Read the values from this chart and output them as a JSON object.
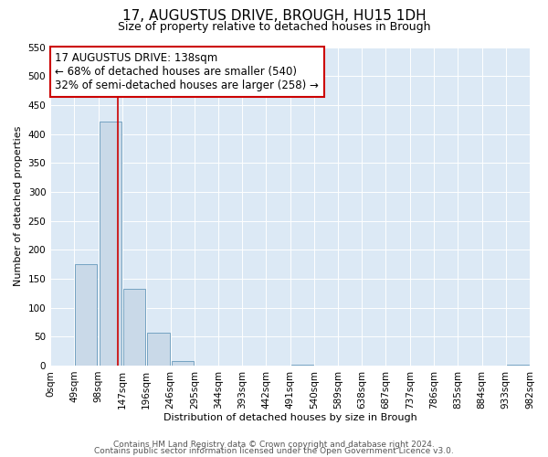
{
  "title": "17, AUGUSTUS DRIVE, BROUGH, HU15 1DH",
  "subtitle": "Size of property relative to detached houses in Brough",
  "xlabel": "Distribution of detached houses by size in Brough",
  "ylabel": "Number of detached properties",
  "bin_edges": [
    0,
    49,
    98,
    147,
    196,
    246,
    295,
    344,
    393,
    442,
    491,
    540,
    589,
    638,
    687,
    737,
    786,
    835,
    884,
    933,
    982
  ],
  "bin_labels": [
    "0sqm",
    "49sqm",
    "98sqm",
    "147sqm",
    "196sqm",
    "246sqm",
    "295sqm",
    "344sqm",
    "393sqm",
    "442sqm",
    "491sqm",
    "540sqm",
    "589sqm",
    "638sqm",
    "687sqm",
    "737sqm",
    "786sqm",
    "835sqm",
    "884sqm",
    "933sqm",
    "982sqm"
  ],
  "counts": [
    0,
    175,
    422,
    133,
    57,
    8,
    0,
    0,
    0,
    0,
    2,
    0,
    0,
    0,
    0,
    0,
    0,
    0,
    0,
    2
  ],
  "bar_color": "#c9d9e8",
  "bar_edge_color": "#6699bb",
  "vline_x": 138,
  "vline_color": "#cc0000",
  "annotation_line1": "17 AUGUSTUS DRIVE: 138sqm",
  "annotation_line2": "← 68% of detached houses are smaller (540)",
  "annotation_line3": "32% of semi-detached houses are larger (258) →",
  "annotation_box_facecolor": "white",
  "annotation_box_edgecolor": "#cc0000",
  "ylim": [
    0,
    550
  ],
  "yticks": [
    0,
    50,
    100,
    150,
    200,
    250,
    300,
    350,
    400,
    450,
    500,
    550
  ],
  "footer_line1": "Contains HM Land Registry data © Crown copyright and database right 2024.",
  "footer_line2": "Contains public sector information licensed under the Open Government Licence v3.0.",
  "plot_bg_color": "#dce9f5",
  "grid_color": "#ffffff",
  "title_fontsize": 11,
  "subtitle_fontsize": 9,
  "label_fontsize": 8,
  "tick_fontsize": 7.5,
  "annotation_fontsize": 8.5,
  "footer_fontsize": 6.5
}
